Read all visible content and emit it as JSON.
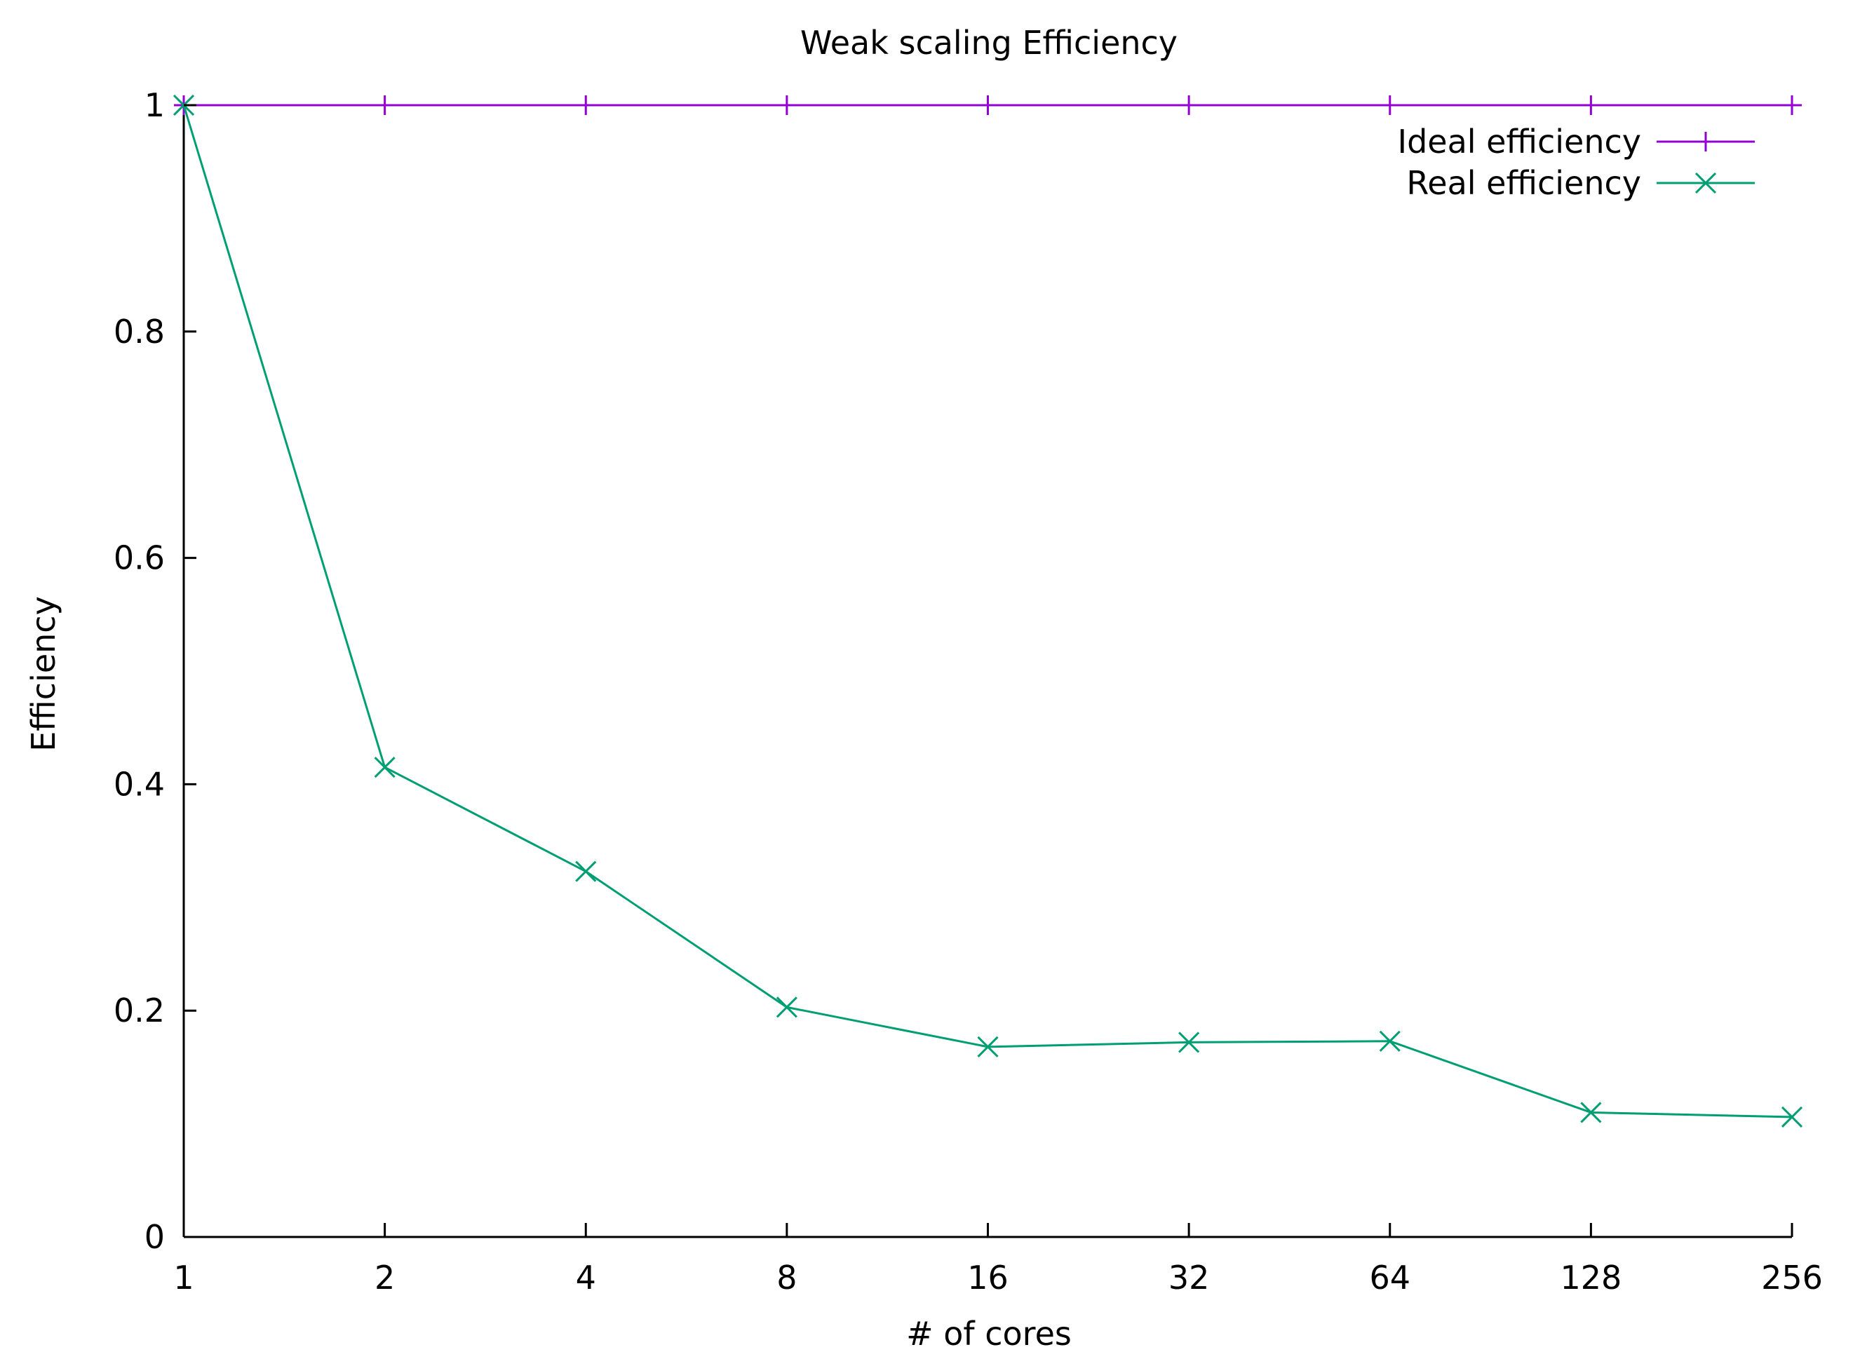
{
  "chart_data": {
    "type": "line",
    "title": "Weak scaling Efficiency",
    "xlabel": "# of cores",
    "ylabel": "Efficiency",
    "x_scale": "log2",
    "categories": [
      "1",
      "2",
      "4",
      "8",
      "16",
      "32",
      "64",
      "128",
      "256"
    ],
    "x": [
      1,
      2,
      4,
      8,
      16,
      32,
      64,
      128,
      256
    ],
    "xlim": [
      1,
      256
    ],
    "ylim": [
      0,
      1
    ],
    "yticks": [
      0,
      0.2,
      0.4,
      0.6,
      0.8,
      1
    ],
    "ytick_labels": [
      "0",
      "0.2",
      "0.4",
      "0.6",
      "0.8",
      "1"
    ],
    "grid": false,
    "legend_position": "top-right",
    "series": [
      {
        "name": "Ideal efficiency",
        "color": "#9400d3",
        "marker": "plus",
        "values": [
          1,
          1,
          1,
          1,
          1,
          1,
          1,
          1,
          1
        ]
      },
      {
        "name": "Real efficiency",
        "color": "#009e73",
        "marker": "cross",
        "values": [
          1.0,
          0.415,
          0.323,
          0.203,
          0.168,
          0.172,
          0.173,
          0.11,
          0.106
        ]
      }
    ]
  }
}
